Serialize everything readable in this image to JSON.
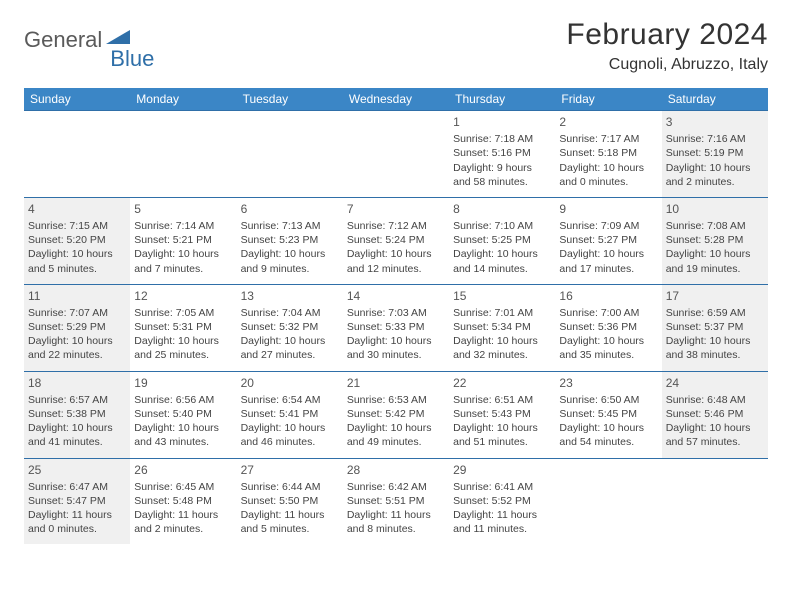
{
  "logo": {
    "part1": "General",
    "part2": "Blue"
  },
  "title": "February 2024",
  "location": "Cugnoli, Abruzzo, Italy",
  "colors": {
    "header_bg": "#3b86c6",
    "header_text": "#ffffff",
    "border": "#2f6fa8",
    "weekend_bg": "#f0f0f0",
    "logo_gray": "#5a5a5a",
    "logo_blue": "#2f6fa8",
    "body_text": "#444444"
  },
  "weekdays": [
    "Sunday",
    "Monday",
    "Tuesday",
    "Wednesday",
    "Thursday",
    "Friday",
    "Saturday"
  ],
  "weeks": [
    [
      null,
      null,
      null,
      null,
      {
        "n": "1",
        "sr": "7:18 AM",
        "ss": "5:16 PM",
        "dl": "9 hours and 58 minutes."
      },
      {
        "n": "2",
        "sr": "7:17 AM",
        "ss": "5:18 PM",
        "dl": "10 hours and 0 minutes."
      },
      {
        "n": "3",
        "sr": "7:16 AM",
        "ss": "5:19 PM",
        "dl": "10 hours and 2 minutes."
      }
    ],
    [
      {
        "n": "4",
        "sr": "7:15 AM",
        "ss": "5:20 PM",
        "dl": "10 hours and 5 minutes."
      },
      {
        "n": "5",
        "sr": "7:14 AM",
        "ss": "5:21 PM",
        "dl": "10 hours and 7 minutes."
      },
      {
        "n": "6",
        "sr": "7:13 AM",
        "ss": "5:23 PM",
        "dl": "10 hours and 9 minutes."
      },
      {
        "n": "7",
        "sr": "7:12 AM",
        "ss": "5:24 PM",
        "dl": "10 hours and 12 minutes."
      },
      {
        "n": "8",
        "sr": "7:10 AM",
        "ss": "5:25 PM",
        "dl": "10 hours and 14 minutes."
      },
      {
        "n": "9",
        "sr": "7:09 AM",
        "ss": "5:27 PM",
        "dl": "10 hours and 17 minutes."
      },
      {
        "n": "10",
        "sr": "7:08 AM",
        "ss": "5:28 PM",
        "dl": "10 hours and 19 minutes."
      }
    ],
    [
      {
        "n": "11",
        "sr": "7:07 AM",
        "ss": "5:29 PM",
        "dl": "10 hours and 22 minutes."
      },
      {
        "n": "12",
        "sr": "7:05 AM",
        "ss": "5:31 PM",
        "dl": "10 hours and 25 minutes."
      },
      {
        "n": "13",
        "sr": "7:04 AM",
        "ss": "5:32 PM",
        "dl": "10 hours and 27 minutes."
      },
      {
        "n": "14",
        "sr": "7:03 AM",
        "ss": "5:33 PM",
        "dl": "10 hours and 30 minutes."
      },
      {
        "n": "15",
        "sr": "7:01 AM",
        "ss": "5:34 PM",
        "dl": "10 hours and 32 minutes."
      },
      {
        "n": "16",
        "sr": "7:00 AM",
        "ss": "5:36 PM",
        "dl": "10 hours and 35 minutes."
      },
      {
        "n": "17",
        "sr": "6:59 AM",
        "ss": "5:37 PM",
        "dl": "10 hours and 38 minutes."
      }
    ],
    [
      {
        "n": "18",
        "sr": "6:57 AM",
        "ss": "5:38 PM",
        "dl": "10 hours and 41 minutes."
      },
      {
        "n": "19",
        "sr": "6:56 AM",
        "ss": "5:40 PM",
        "dl": "10 hours and 43 minutes."
      },
      {
        "n": "20",
        "sr": "6:54 AM",
        "ss": "5:41 PM",
        "dl": "10 hours and 46 minutes."
      },
      {
        "n": "21",
        "sr": "6:53 AM",
        "ss": "5:42 PM",
        "dl": "10 hours and 49 minutes."
      },
      {
        "n": "22",
        "sr": "6:51 AM",
        "ss": "5:43 PM",
        "dl": "10 hours and 51 minutes."
      },
      {
        "n": "23",
        "sr": "6:50 AM",
        "ss": "5:45 PM",
        "dl": "10 hours and 54 minutes."
      },
      {
        "n": "24",
        "sr": "6:48 AM",
        "ss": "5:46 PM",
        "dl": "10 hours and 57 minutes."
      }
    ],
    [
      {
        "n": "25",
        "sr": "6:47 AM",
        "ss": "5:47 PM",
        "dl": "11 hours and 0 minutes."
      },
      {
        "n": "26",
        "sr": "6:45 AM",
        "ss": "5:48 PM",
        "dl": "11 hours and 2 minutes."
      },
      {
        "n": "27",
        "sr": "6:44 AM",
        "ss": "5:50 PM",
        "dl": "11 hours and 5 minutes."
      },
      {
        "n": "28",
        "sr": "6:42 AM",
        "ss": "5:51 PM",
        "dl": "11 hours and 8 minutes."
      },
      {
        "n": "29",
        "sr": "6:41 AM",
        "ss": "5:52 PM",
        "dl": "11 hours and 11 minutes."
      },
      null,
      null
    ]
  ],
  "labels": {
    "sunrise": "Sunrise:",
    "sunset": "Sunset:",
    "daylight": "Daylight:"
  }
}
